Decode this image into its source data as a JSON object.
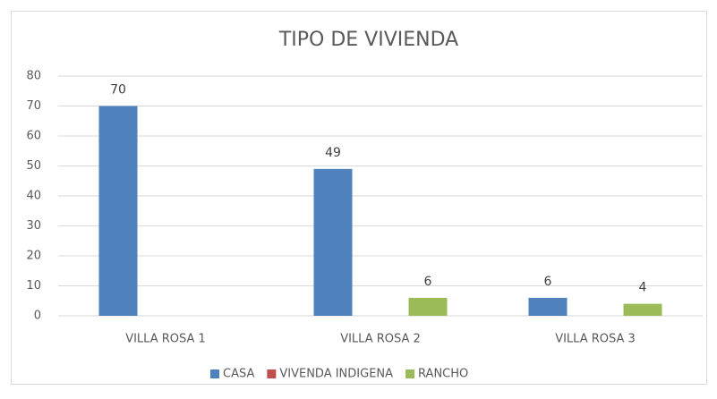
{
  "chart_data": {
    "type": "bar",
    "title": "TIPO DE VIVIENDA",
    "categories": [
      "VILLA ROSA 1",
      "VILLA ROSA 2",
      "VILLA ROSA 3"
    ],
    "series": [
      {
        "name": "CASA",
        "color": "#4f81bd",
        "values": [
          70,
          49,
          6
        ]
      },
      {
        "name": "VIVENDA INDIGENA",
        "color": "#c0504d",
        "values": [
          null,
          null,
          null
        ]
      },
      {
        "name": "RANCHO",
        "color": "#9bbb59",
        "values": [
          null,
          6,
          4
        ]
      }
    ],
    "ylim": [
      0,
      80
    ],
    "yticks": [
      0,
      10,
      20,
      30,
      40,
      50,
      60,
      70,
      80
    ],
    "grid": true,
    "legend": "bottom"
  }
}
